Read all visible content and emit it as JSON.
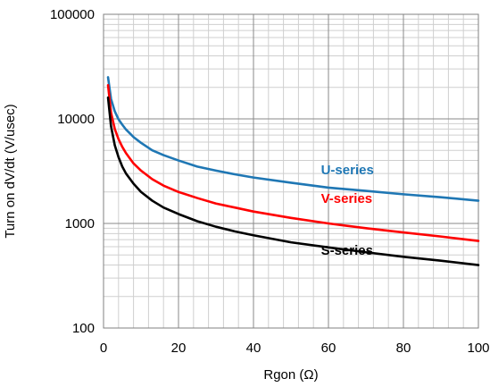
{
  "chart_data": {
    "type": "line",
    "xlabel": "Rgon (Ω)",
    "ylabel": "Turn on dV/dt (V/usec)",
    "xlim": [
      0,
      100
    ],
    "ylim": [
      100,
      100000
    ],
    "y_scale": "log",
    "grid": true,
    "x_ticks": [
      "0",
      "20",
      "40",
      "60",
      "80",
      "100"
    ],
    "y_ticks": [
      "100",
      "1000",
      "10000",
      "100000"
    ],
    "series": [
      {
        "name": "U-series",
        "color": "#1f77b4",
        "x": [
          1.2,
          2,
          3,
          4,
          5,
          6,
          8,
          10,
          13,
          16,
          20,
          25,
          30,
          35,
          40,
          50,
          60,
          70,
          80,
          90,
          100
        ],
        "y": [
          25000,
          15500,
          11800,
          9900,
          8800,
          7900,
          6700,
          5900,
          5000,
          4500,
          4000,
          3500,
          3200,
          2950,
          2750,
          2450,
          2200,
          2050,
          1900,
          1780,
          1650
        ]
      },
      {
        "name": "V-series",
        "color": "#ff0000",
        "x": [
          1.2,
          2,
          3,
          4,
          5,
          6,
          8,
          10,
          13,
          16,
          20,
          25,
          30,
          35,
          40,
          50,
          60,
          70,
          80,
          90,
          100
        ],
        "y": [
          21000,
          11500,
          8000,
          6400,
          5400,
          4700,
          3750,
          3200,
          2650,
          2300,
          2000,
          1750,
          1550,
          1420,
          1300,
          1130,
          1000,
          900,
          820,
          750,
          680
        ]
      },
      {
        "name": "S-series",
        "color": "#000000",
        "x": [
          1.2,
          2,
          3,
          4,
          5,
          6,
          8,
          10,
          13,
          16,
          20,
          25,
          30,
          35,
          40,
          50,
          60,
          70,
          80,
          90,
          100
        ],
        "y": [
          16000,
          8500,
          5600,
          4300,
          3500,
          3000,
          2400,
          2000,
          1650,
          1420,
          1230,
          1050,
          930,
          840,
          770,
          660,
          590,
          530,
          480,
          440,
          400
        ]
      }
    ],
    "annotations": [
      {
        "text": "U-series",
        "x": 58,
        "y": 2950,
        "color": "#1f77b4"
      },
      {
        "text": "V-series",
        "x": 58,
        "y": 1580,
        "color": "#ff0000"
      },
      {
        "text": "S-series",
        "x": 58,
        "y": 500,
        "color": "#000000"
      }
    ]
  }
}
